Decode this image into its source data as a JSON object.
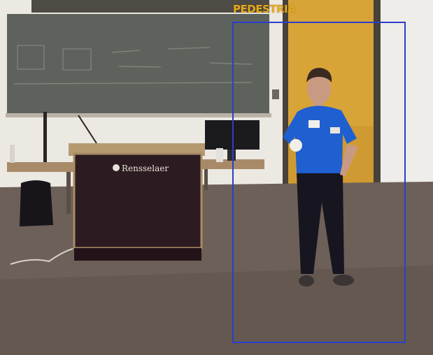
{
  "detection": {
    "label": "PEDESTRIA",
    "box_color": "#2a3fc9",
    "label_color": "#e4a81c"
  },
  "podium": {
    "logo_text": "Rensselaer"
  }
}
